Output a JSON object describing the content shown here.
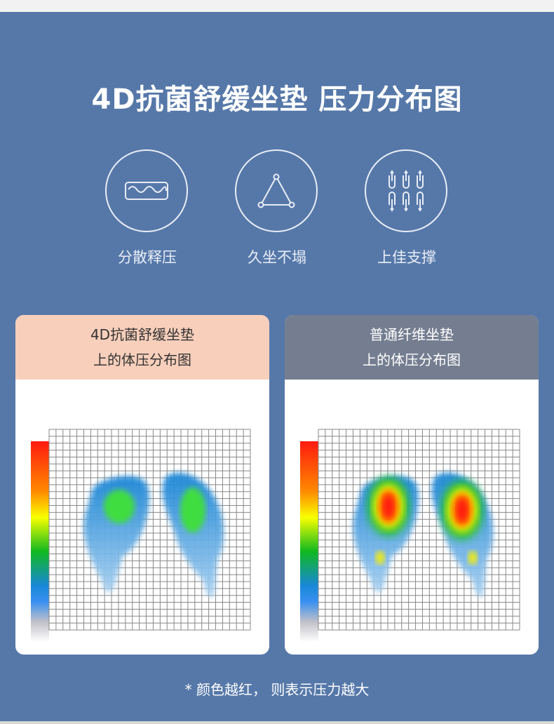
{
  "title": "4D抗菌舒缓坐垫 压力分布图",
  "features": [
    {
      "icon": "wave-cushion-icon",
      "label": "分散释压"
    },
    {
      "icon": "triangle-icon",
      "label": "久坐不塌"
    },
    {
      "icon": "spring-fiber-icon",
      "label": "上佳支撑"
    }
  ],
  "cards": [
    {
      "line1": "4D抗菌舒缓坐垫",
      "line2": "上的体压分布图",
      "header_color": "#f8cfbb",
      "text_color": "#333333",
      "peak": "green"
    },
    {
      "line1": "普通纤维坐垫",
      "line2": "上的体压分布图",
      "header_color": "#747e90",
      "text_color": "#ffffff",
      "peak": "red"
    }
  ],
  "note": "* 颜色越红， 则表示压力越大",
  "colors": {
    "background": "#5678a9"
  }
}
